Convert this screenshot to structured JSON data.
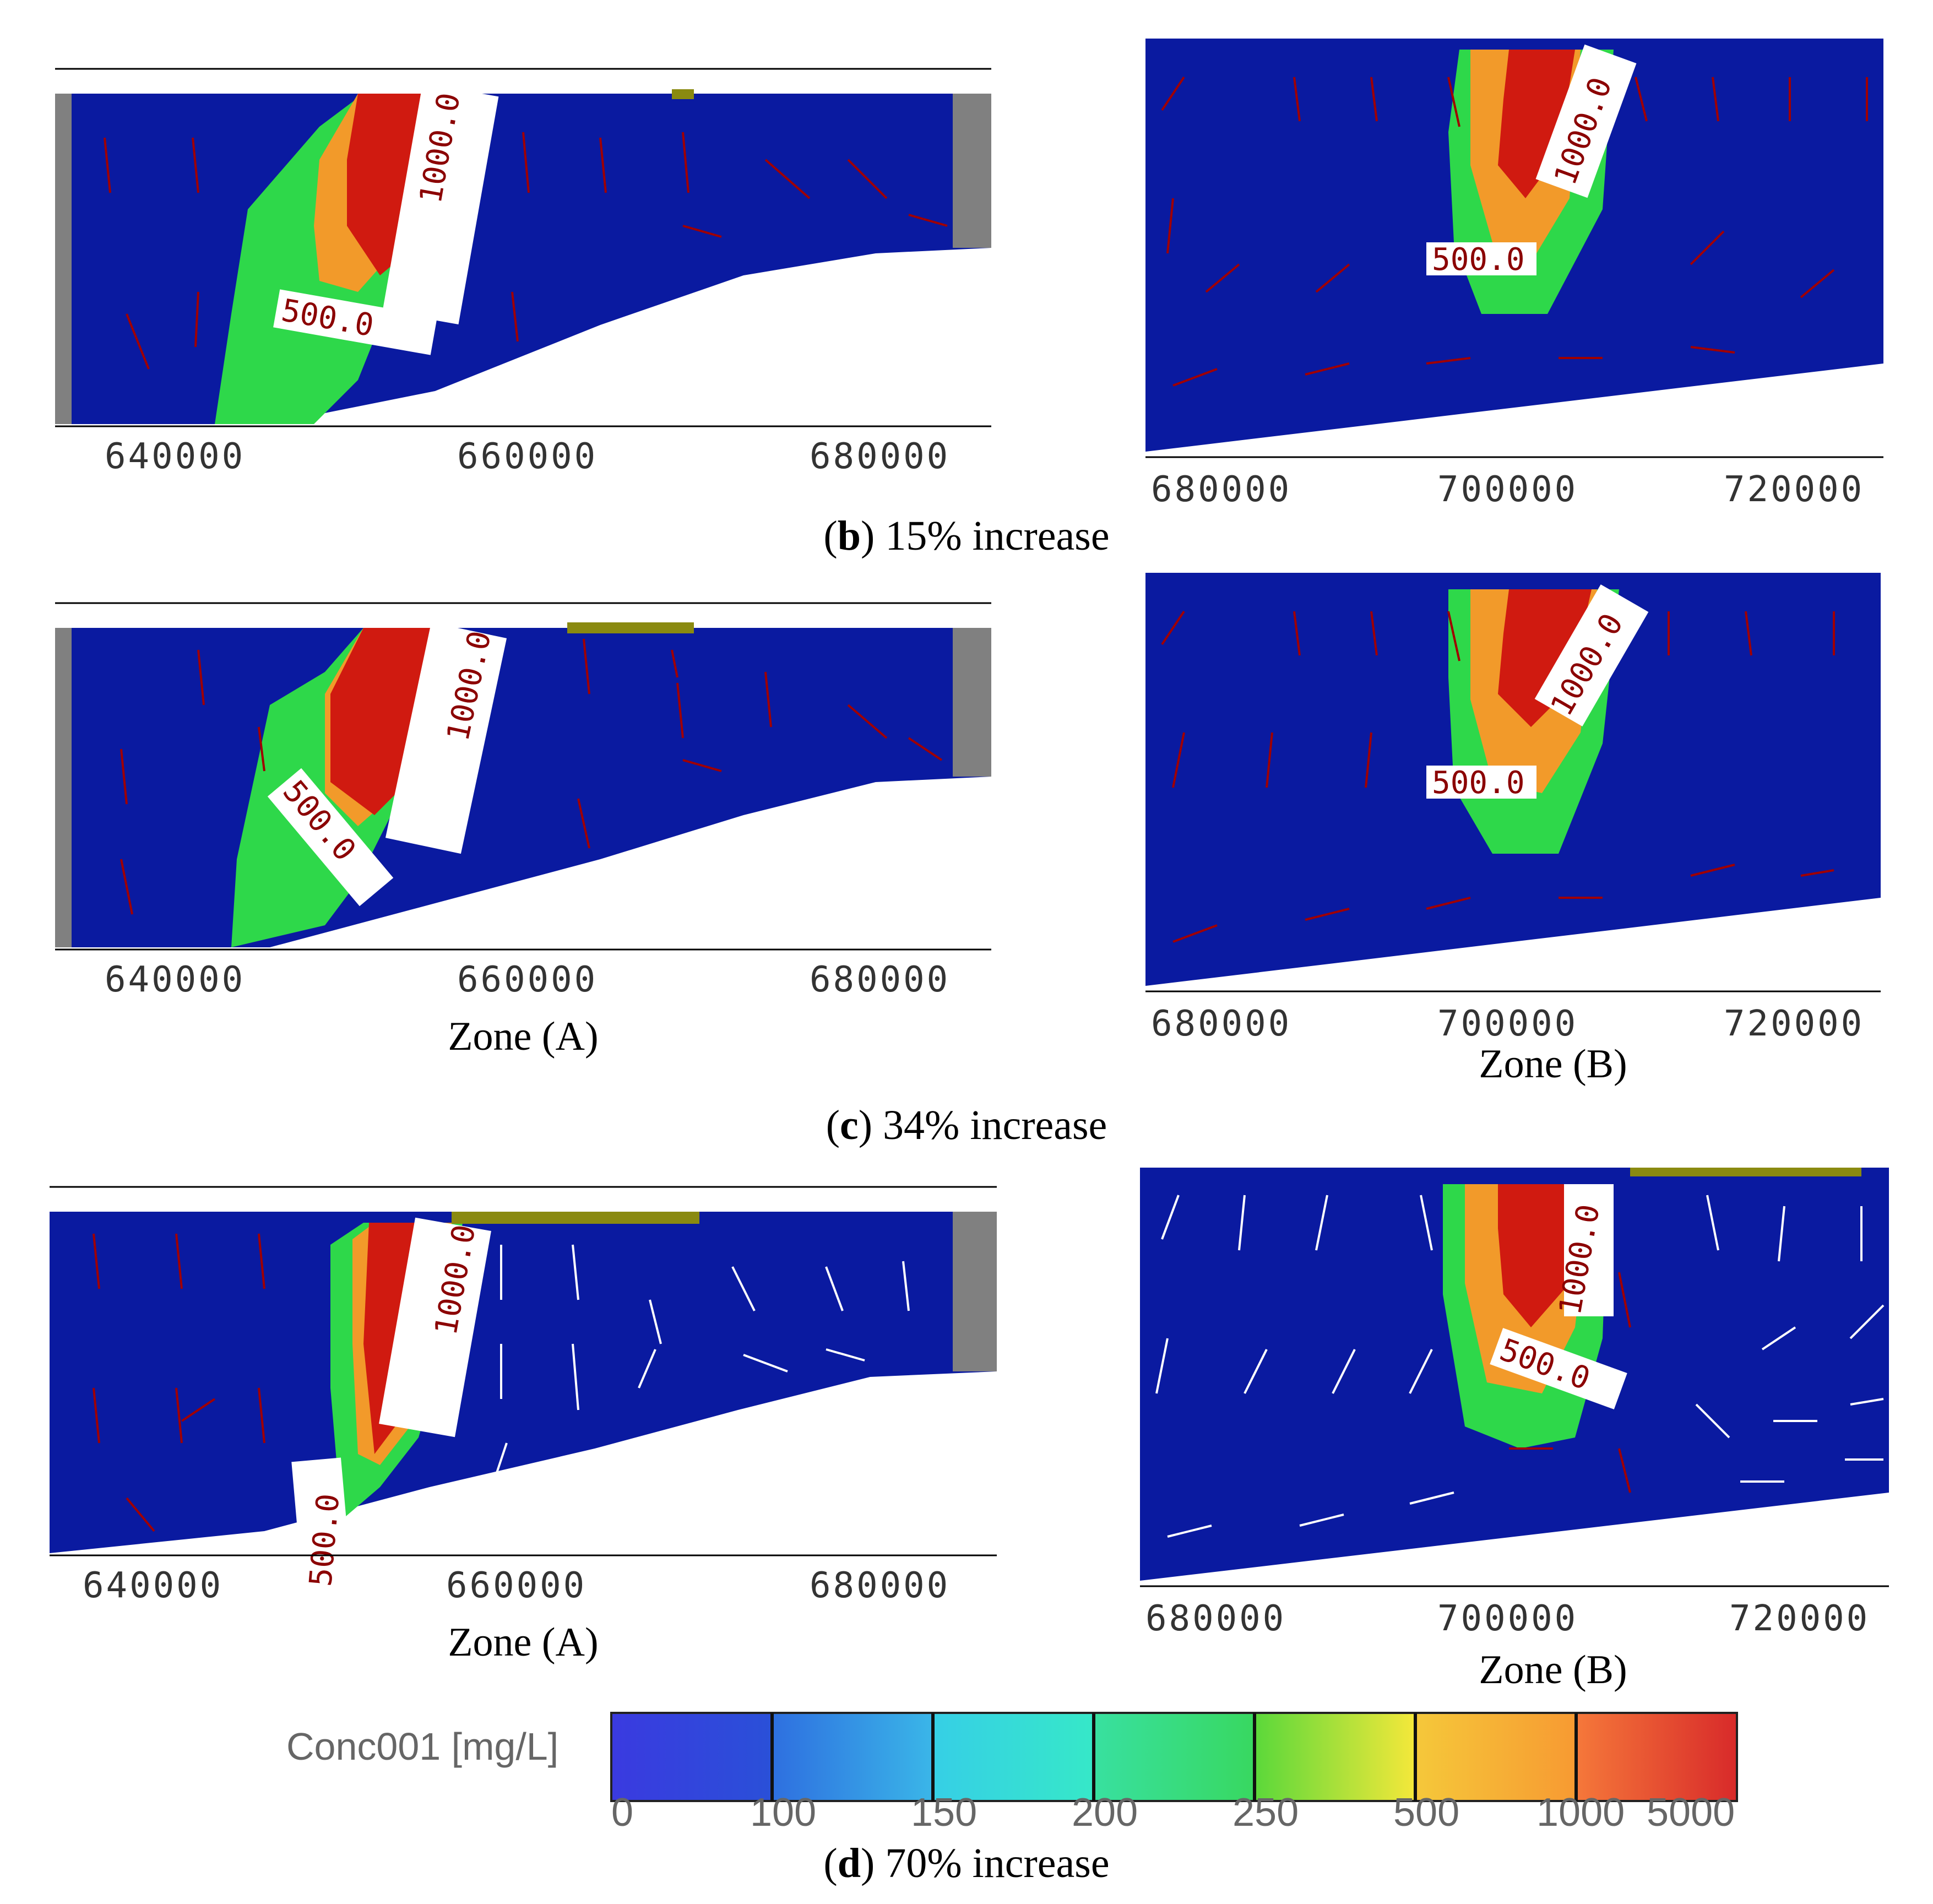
{
  "rows": [
    {
      "id": "b",
      "caption_letter": "b",
      "caption_text": "15% increase",
      "zone_a": {
        "zone_label": "",
        "ticks": [
          "640000",
          "660000",
          "680000"
        ],
        "contours": [
          "1000.0",
          "500.0"
        ]
      },
      "zone_b": {
        "zone_label": "",
        "ticks": [
          "680000",
          "700000",
          "720000"
        ],
        "contours": [
          "1000.0",
          "500.0"
        ]
      }
    },
    {
      "id": "c",
      "caption_letter": "c",
      "caption_text": "34% increase",
      "zone_a": {
        "zone_label": "Zone (A)",
        "ticks": [
          "640000",
          "660000",
          "680000"
        ],
        "contours": [
          "1000.0",
          "500.0"
        ]
      },
      "zone_b": {
        "zone_label": "Zone (B)",
        "ticks": [
          "680000",
          "700000",
          "720000"
        ],
        "contours": [
          "1000.0",
          "500.0"
        ]
      }
    },
    {
      "id": "d",
      "caption_letter": "d",
      "caption_text": "70% increase",
      "zone_a": {
        "zone_label": "Zone (A)",
        "ticks": [
          "640000",
          "660000",
          "680000"
        ],
        "contours": [
          "1000.0",
          "500.0"
        ]
      },
      "zone_b": {
        "zone_label": "Zone (B)",
        "ticks": [
          "680000",
          "700000",
          "720000"
        ],
        "contours": [
          "1000.0",
          "500.0"
        ]
      }
    }
  ],
  "legend": {
    "title": "Conc001 [mg/L]",
    "ticks": [
      "0",
      "100",
      "150",
      "200",
      "250",
      "500",
      "1000",
      "5000"
    ],
    "colors": [
      "#2a3bd6",
      "#3a8fe8",
      "#36e0e0",
      "#38d86a",
      "#3ad83a",
      "#f5e83a",
      "#f79a32",
      "#e23a2a",
      "#c42222"
    ]
  },
  "colors": {
    "background_blue": "#0a1aa0",
    "plume_red": "#d01a10",
    "plume_orange": "#f29a2a",
    "plume_green": "#2ed84a",
    "arrow_red": "#a00000",
    "arrow_white": "#ffffff",
    "boundary_gray": "#808080"
  }
}
